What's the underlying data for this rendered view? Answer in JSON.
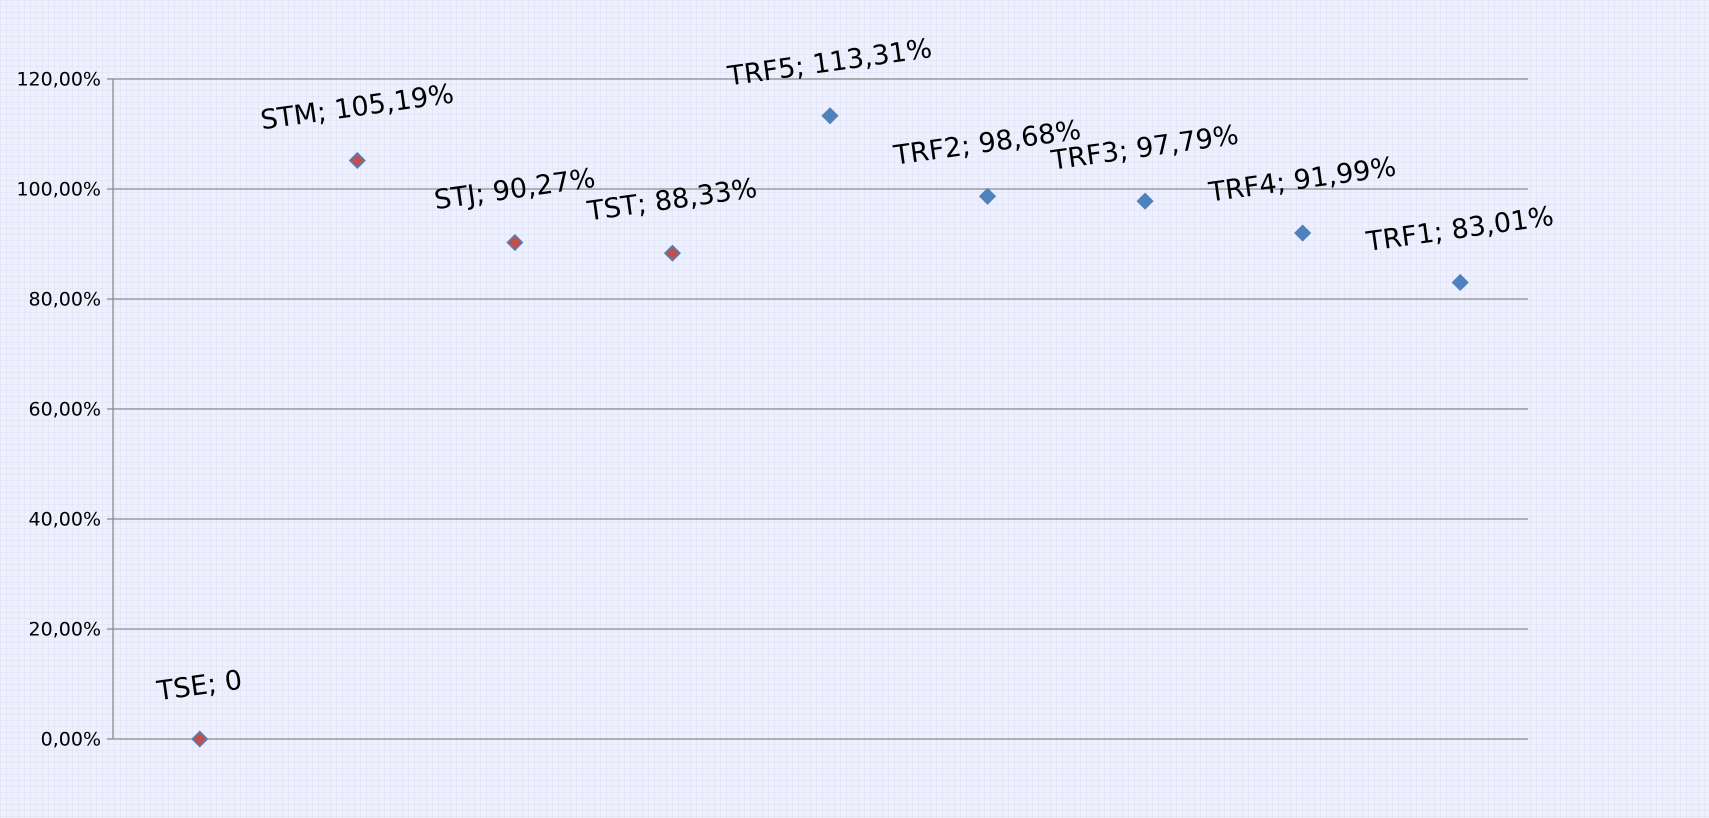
{
  "chart_data": {
    "type": "scatter",
    "categories": [
      "TSE",
      "STM",
      "STJ",
      "TST",
      "TRF5",
      "TRF2",
      "TRF3",
      "TRF4",
      "TRF1"
    ],
    "values": [
      0,
      105.19,
      90.27,
      88.33,
      113.31,
      98.68,
      97.79,
      91.99,
      83.01
    ],
    "value_labels": [
      "TSE; 0",
      "STM; 105,19%",
      "STJ; 90,27%",
      "TST; 88,33%",
      "TRF5; 113,31%",
      "TRF2; 98,68%",
      "TRF3; 97,79%",
      "TRF4; 91,99%",
      "TRF1; 83,01%"
    ],
    "colors": [
      "#c0504d",
      "#c0504d",
      "#c0504d",
      "#c0504d",
      "#4f81bd",
      "#4f81bd",
      "#4f81bd",
      "#4f81bd",
      "#4f81bd"
    ],
    "marker_edge_color": "#4f81bd",
    "ylim": [
      0,
      120
    ],
    "yticks": [
      {
        "value": 0,
        "label": "0,00%"
      },
      {
        "value": 20,
        "label": "20,00%"
      },
      {
        "value": 40,
        "label": "40,00%"
      },
      {
        "value": 60,
        "label": "60,00%"
      },
      {
        "value": 80,
        "label": "80,00%"
      },
      {
        "value": 100,
        "label": "100,00%"
      },
      {
        "value": 120,
        "label": "120,00%"
      }
    ],
    "grid": true
  }
}
